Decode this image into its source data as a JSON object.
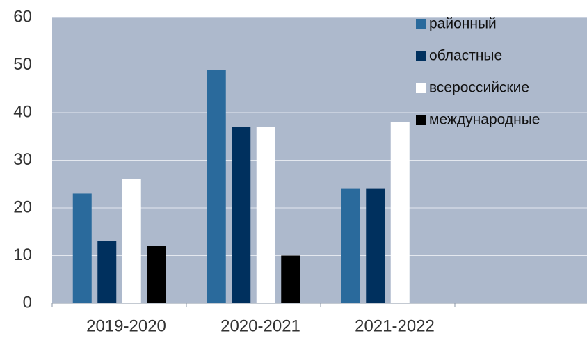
{
  "chart_data": {
    "type": "bar",
    "categories": [
      "2019-2020",
      "2020-2021",
      "2021-2022",
      null
    ],
    "series": [
      {
        "name": "районный",
        "color": "#2a6a9c",
        "values": [
          23,
          49,
          24,
          null
        ]
      },
      {
        "name": "областные",
        "color": "#00305e",
        "values": [
          13,
          37,
          24,
          null
        ]
      },
      {
        "name": "всероссийские",
        "color": "#ffffff",
        "values": [
          26,
          37,
          38,
          null
        ]
      },
      {
        "name": "международные",
        "color": "#000000",
        "values": [
          12,
          10,
          null,
          null
        ]
      }
    ],
    "ylim": [
      0,
      60
    ],
    "yticks": [
      0,
      10,
      20,
      30,
      40,
      50,
      60
    ],
    "grid": true,
    "legend": "top-right"
  }
}
